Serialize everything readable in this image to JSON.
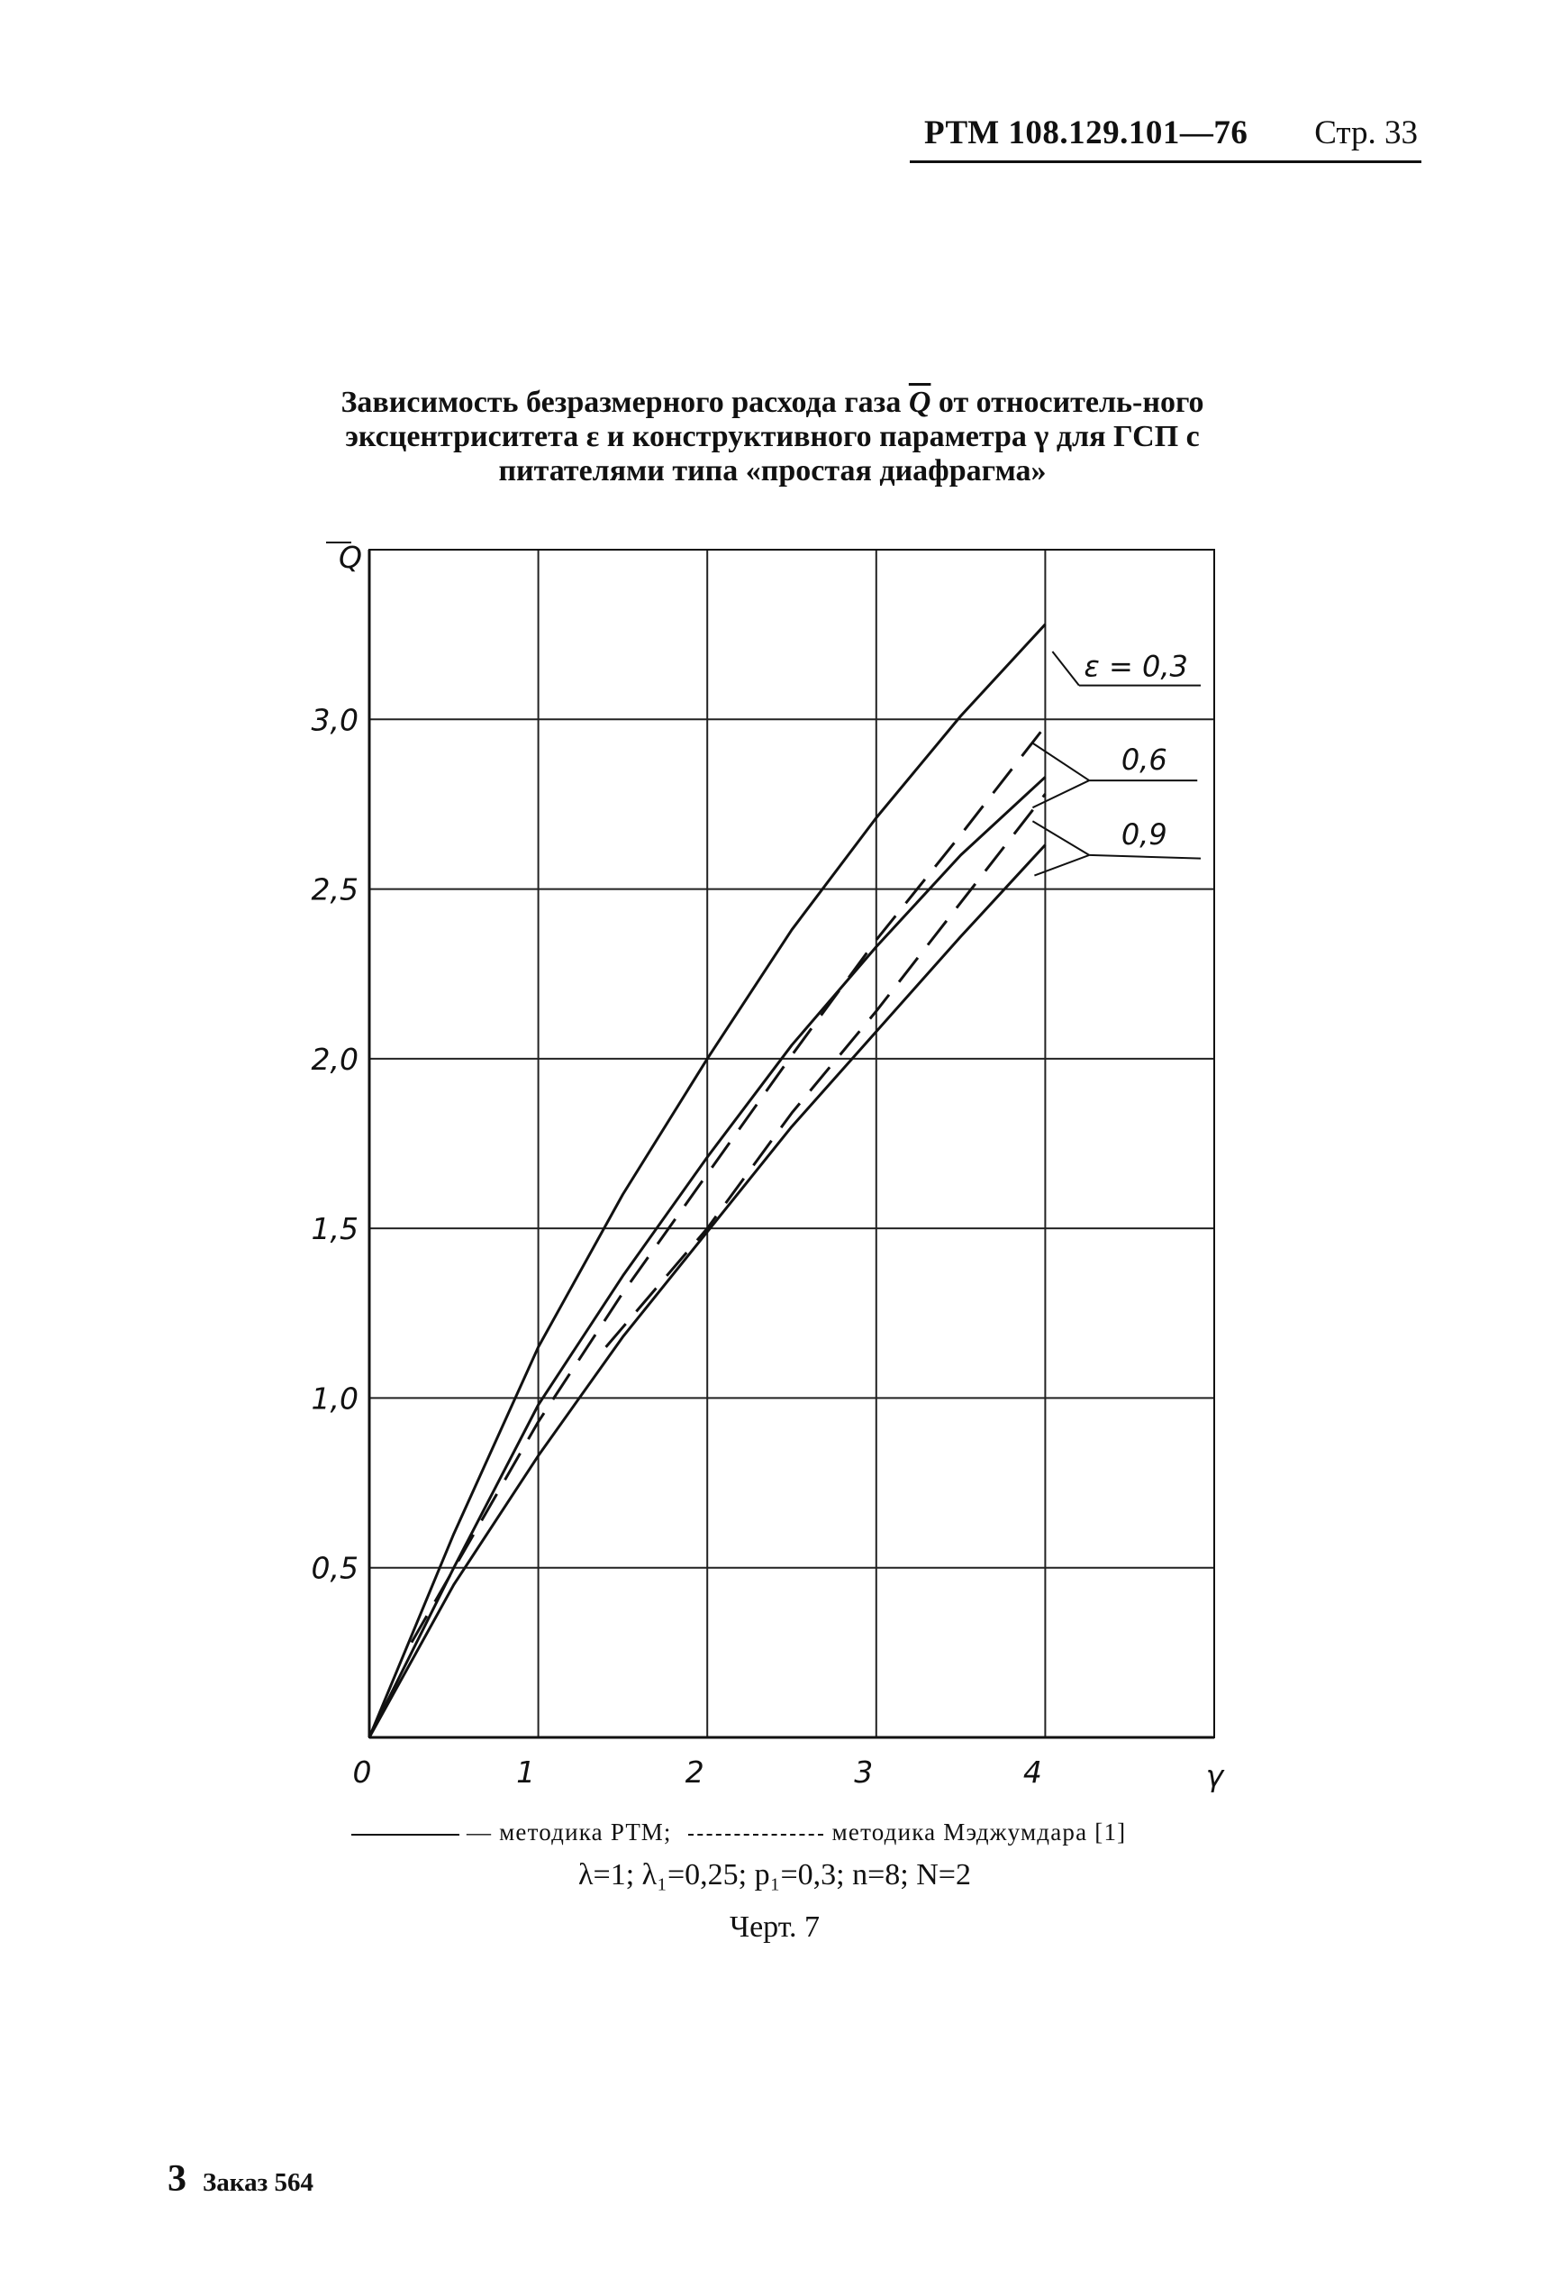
{
  "header": {
    "doc_code": "РТМ 108.129.101—76",
    "page_label": "Стр. 33"
  },
  "title": {
    "part1": "Зависимость безразмерного расхода газа ",
    "q_symbol": "Q",
    "part2": " от относитель-ного эксцентриситета ε и конструктивного параметра γ для ГСП с питателями типа «простая диафрагма»"
  },
  "legend": {
    "rtm_label": "— методика РТМ;",
    "majumdar_label": "методика Мэджумдара [1]"
  },
  "params": "λ=1; λ₁=0,25; p₁=0,3; n=8; N=2",
  "caption": "Черт. 7",
  "footer": {
    "sheet_number": "3",
    "order": "Заказ 564"
  },
  "chart_data": {
    "type": "line",
    "xlabel": "γ",
    "ylabel": "Q",
    "xlim": [
      0,
      5
    ],
    "ylim": [
      0,
      3.5
    ],
    "x_ticks": [
      "0",
      "1",
      "2",
      "3",
      "4"
    ],
    "y_ticks": [
      "0,5",
      "1,0",
      "1,5",
      "2,0",
      "2,5",
      "3,0"
    ],
    "grid": true,
    "series": [
      {
        "name": "ε = 0,3",
        "style": "solid",
        "x": [
          0,
          0.5,
          1,
          1.5,
          2,
          2.5,
          3,
          3.5,
          4
        ],
        "y": [
          0,
          0.6,
          1.15,
          1.6,
          2.0,
          2.38,
          2.71,
          3.01,
          3.28
        ]
      },
      {
        "name": "0,6",
        "style": "solid",
        "x": [
          0,
          0.5,
          1,
          1.5,
          2,
          2.5,
          3,
          3.5,
          4
        ],
        "y": [
          0,
          0.5,
          0.98,
          1.36,
          1.71,
          2.04,
          2.33,
          2.6,
          2.83
        ]
      },
      {
        "name": "0,9",
        "style": "solid",
        "x": [
          0,
          0.5,
          1,
          1.5,
          2,
          2.5,
          3,
          3.5,
          4
        ],
        "y": [
          0,
          0.45,
          0.83,
          1.18,
          1.49,
          1.8,
          2.08,
          2.36,
          2.63
        ]
      },
      {
        "name": "0,6",
        "style": "dashed",
        "x": [
          0.25,
          1,
          1.5,
          2,
          2.5,
          3,
          3.5,
          4
        ],
        "y": [
          0.28,
          0.93,
          1.31,
          1.66,
          2.01,
          2.35,
          2.66,
          2.98
        ]
      },
      {
        "name": "0,9",
        "style": "dashed",
        "x": [
          1.4,
          2,
          2.5,
          3,
          3.5,
          4
        ],
        "y": [
          1.15,
          1.5,
          1.84,
          2.14,
          2.46,
          2.78
        ]
      }
    ],
    "curve_labels": [
      "ε = 0,3",
      "0,6",
      "0,9"
    ]
  }
}
